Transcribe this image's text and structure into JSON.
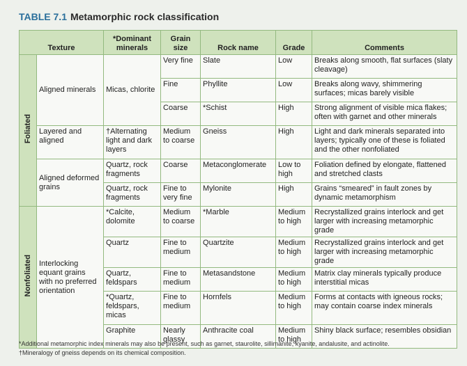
{
  "title": {
    "number": "TABLE 7.1",
    "text": "Metamorphic rock classification"
  },
  "table": {
    "headers": [
      "Texture",
      "*Dominant minerals",
      "Grain size",
      "Rock name",
      "Grade",
      "Comments"
    ],
    "groups": [
      {
        "label": "Foliated",
        "rows": [
          [
            "Aligned minerals",
            "Micas, chlorite",
            "Very fine",
            "Slate",
            "Low",
            "Breaks along smooth, flat surfaces (slaty cleavage)"
          ],
          [
            "Fine",
            "Phyllite",
            "Low",
            "Breaks along wavy, shimmering surfaces; micas barely visible"
          ],
          [
            "Coarse",
            "*Schist",
            "High",
            "Strong alignment of visible mica flakes; often with garnet and other minerals"
          ],
          [
            "Layered and aligned",
            "†Alternating light and dark layers",
            "Medium to coarse",
            "Gneiss",
            "High",
            "Light and dark minerals separated into layers; typically one of these is foliated and the other nonfoliated"
          ],
          [
            "Aligned deformed grains",
            "Quartz, rock fragments",
            "Coarse",
            "Metaconglomerate",
            "Low to high",
            "Foliation defined by elongate, flattened and stretched clasts"
          ],
          [
            "Quartz, rock fragments",
            "Fine to very fine",
            "Mylonite",
            "High",
            "Grains “smeared” in fault zones by dynamic metamorphism"
          ]
        ]
      },
      {
        "label": "Nonfoliated",
        "rows": [
          [
            "Interlocking equant grains with no preferred orientation",
            "*Calcite, dolomite",
            "Medium to coarse",
            "*Marble",
            "Medium to high",
            "Recrystallized grains interlock and get larger with increasing metamorphic grade"
          ],
          [
            "Quartz",
            "Fine to medium",
            "Quartzite",
            "Medium to high",
            "Recrystallized grains interlock and get larger with increasing metamorphic grade"
          ],
          [
            "Quartz, feldspars",
            "Fine to medium",
            "Metasandstone",
            "Medium to high",
            "Matrix clay minerals typically produce interstitial micas"
          ],
          [
            "*Quartz, feldspars, micas",
            "Fine to medium",
            "Hornfels",
            "Medium to high",
            "Forms at contacts with igneous rocks; may contain coarse index minerals"
          ],
          [
            "Graphite",
            "Nearly glassy",
            "Anthracite coal",
            "Medium to high",
            "Shiny black surface; resembles obsidian"
          ]
        ]
      }
    ]
  },
  "footnotes": [
    "*Additional metamorphic index minerals may also be present, such as garnet, staurolite, sillimanite, kyanite, andalusite, and actinolite.",
    "†Mineralogy of gneiss depends on its chemical composition."
  ]
}
